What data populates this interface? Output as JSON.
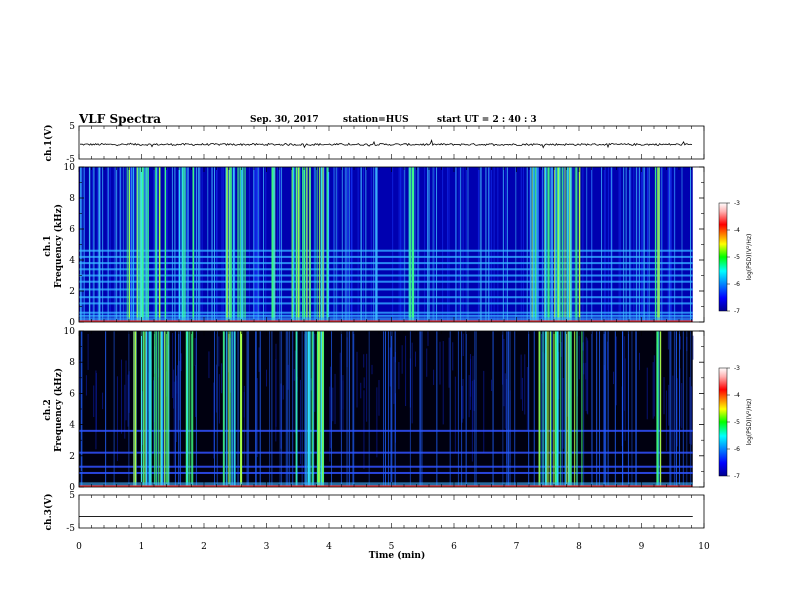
{
  "header": {
    "title": "VLF Spectra",
    "date": "Sep. 30, 2017",
    "station": "station=HUS",
    "start": "start  UT =   2 : 40 : 3"
  },
  "chart_data": [
    {
      "type": "line",
      "panel": "ch1-waveform",
      "ylabel": "ch.1(V)",
      "ylim": [
        -5,
        5
      ],
      "y_ticks": [
        "5",
        "-5"
      ],
      "xlim": [
        0,
        10
      ],
      "description_series": [
        {
          "values": "noisy trace near -0.5 V with small fluctuations"
        }
      ]
    },
    {
      "type": "heatmap",
      "panel": "ch1-spectrogram",
      "ylabel": "ch.1\nFrequency (kHz)",
      "ylim": [
        0,
        10
      ],
      "y_ticks": [
        "0",
        "2",
        "4",
        "6",
        "8",
        "10"
      ],
      "xlim": [
        0,
        10
      ],
      "horizontal_lines_khz": [
        0.4,
        0.6,
        1.2,
        1.6,
        2.1,
        2.6,
        3.0,
        3.4,
        3.8,
        4.2,
        4.6
      ],
      "bright_bursts_min": [
        [
          0.75,
          1.4
        ],
        [
          1.6,
          1.85
        ],
        [
          2.3,
          2.65
        ],
        [
          3.05,
          3.15
        ],
        [
          3.4,
          4.0
        ],
        [
          5.2,
          5.35
        ],
        [
          7.2,
          8.05
        ],
        [
          9.2,
          9.3
        ]
      ],
      "colorbar": {
        "label": "log(PSD)(V²/Hz)",
        "ticks": [
          "-3",
          "-4",
          "-5",
          "-6",
          "-7"
        ],
        "range": [
          -7,
          -3
        ]
      }
    },
    {
      "type": "heatmap",
      "panel": "ch2-spectrogram",
      "ylabel": "ch.2\nFrequency (kHz)",
      "ylim": [
        0,
        10
      ],
      "y_ticks": [
        "0",
        "2",
        "4",
        "6",
        "8",
        "10"
      ],
      "xlim": [
        0,
        10
      ],
      "horizontal_lines_khz": [
        0.9,
        1.3,
        2.2,
        3.6
      ],
      "bright_bursts_min": [
        [
          0.85,
          1.45
        ],
        [
          1.7,
          1.85
        ],
        [
          2.3,
          2.6
        ],
        [
          3.4,
          3.9
        ],
        [
          7.35,
          8.05
        ],
        [
          9.2,
          9.3
        ]
      ],
      "colorbar": {
        "label": "log(PSD)(V²/Hz)",
        "ticks": [
          "-3",
          "-4",
          "-5",
          "-6",
          "-7"
        ],
        "range": [
          -7,
          -3
        ]
      }
    },
    {
      "type": "line",
      "panel": "ch3-waveform",
      "ylabel": "ch.3(V)",
      "ylim": [
        -5,
        5
      ],
      "y_ticks": [
        "5",
        "-5"
      ],
      "xlim": [
        0,
        10
      ],
      "x_ticks": [
        "0",
        "1",
        "2",
        "3",
        "4",
        "5",
        "6",
        "7",
        "8",
        "9",
        "10"
      ],
      "xlabel": "Time (min)",
      "description_series": [
        {
          "values": "flat line at about -1.5 V"
        }
      ]
    }
  ]
}
